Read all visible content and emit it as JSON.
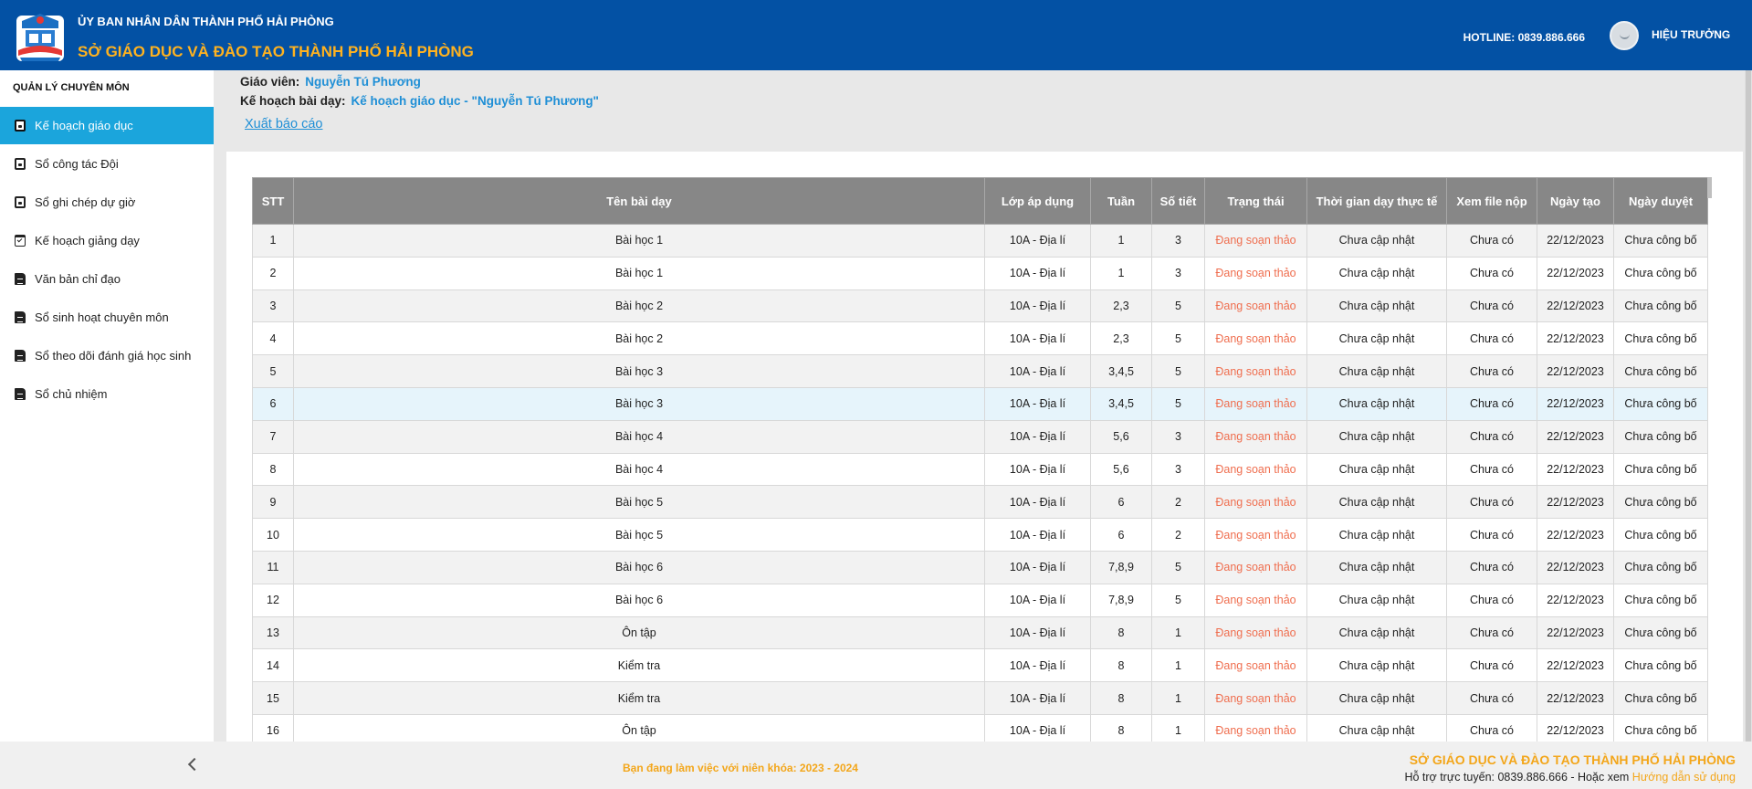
{
  "header": {
    "subtitle": "ỦY BAN NHÂN DÂN THÀNH PHỐ HẢI PHÒNG",
    "title": "SỞ GIÁO DỤC VÀ ĐÀO TẠO THÀNH PHỐ HẢI PHÒNG",
    "hotline": "HOTLINE: 0839.886.666",
    "user_role": "HIỆU TRƯỞNG"
  },
  "sidebar": {
    "heading": "QUẢN LÝ CHUYÊN MÔN",
    "items": [
      {
        "label": "Kế hoạch giáo dục",
        "icon": "book-icon"
      },
      {
        "label": "Sổ công tác Đội",
        "icon": "book-icon"
      },
      {
        "label": "Sổ ghi chép dự giờ",
        "icon": "book-icon"
      },
      {
        "label": "Kế hoạch giảng dạy",
        "icon": "calendar-check-icon"
      },
      {
        "label": "Văn bản chỉ đạo",
        "icon": "file-icon"
      },
      {
        "label": "Sổ sinh hoạt chuyên môn",
        "icon": "file-icon"
      },
      {
        "label": "Sổ theo dõi đánh giá học sinh",
        "icon": "file-icon"
      },
      {
        "label": "Sổ chủ nhiệm",
        "icon": "file-icon"
      }
    ]
  },
  "info": {
    "teacher_label": "Giáo viên:",
    "teacher_value": "Nguyễn Tú Phương",
    "plan_label": "Kế hoạch bài dạy:",
    "plan_value": "Kế hoạch giáo dục - \"Nguyễn Tú Phương\"",
    "export_link": "Xuất báo cáo"
  },
  "table": {
    "headers": [
      "STT",
      "Tên bài dạy",
      "Lớp áp dụng",
      "Tuần",
      "Số tiết",
      "Trạng thái",
      "Thời gian dạy thực tế",
      "Xem file nộp",
      "Ngày tạo",
      "Ngày duyệt"
    ],
    "rows": [
      [
        "1",
        "Bài học 1",
        "10A - Địa lí",
        "1",
        "3",
        "Đang soạn thảo",
        "Chưa cập nhật",
        "Chưa có",
        "22/12/2023",
        "Chưa công bố"
      ],
      [
        "2",
        "Bài học 1",
        "10A - Địa lí",
        "1",
        "3",
        "Đang soạn thảo",
        "Chưa cập nhật",
        "Chưa có",
        "22/12/2023",
        "Chưa công bố"
      ],
      [
        "3",
        "Bài học 2",
        "10A - Địa lí",
        "2,3",
        "5",
        "Đang soạn thảo",
        "Chưa cập nhật",
        "Chưa có",
        "22/12/2023",
        "Chưa công bố"
      ],
      [
        "4",
        "Bài học 2",
        "10A - Địa lí",
        "2,3",
        "5",
        "Đang soạn thảo",
        "Chưa cập nhật",
        "Chưa có",
        "22/12/2023",
        "Chưa công bố"
      ],
      [
        "5",
        "Bài học 3",
        "10A - Địa lí",
        "3,4,5",
        "5",
        "Đang soạn thảo",
        "Chưa cập nhật",
        "Chưa có",
        "22/12/2023",
        "Chưa công bố"
      ],
      [
        "6",
        "Bài học 3",
        "10A - Địa lí",
        "3,4,5",
        "5",
        "Đang soạn thảo",
        "Chưa cập nhật",
        "Chưa có",
        "22/12/2023",
        "Chưa công bố"
      ],
      [
        "7",
        "Bài học 4",
        "10A - Địa lí",
        "5,6",
        "3",
        "Đang soạn thảo",
        "Chưa cập nhật",
        "Chưa có",
        "22/12/2023",
        "Chưa công bố"
      ],
      [
        "8",
        "Bài học 4",
        "10A - Địa lí",
        "5,6",
        "3",
        "Đang soạn thảo",
        "Chưa cập nhật",
        "Chưa có",
        "22/12/2023",
        "Chưa công bố"
      ],
      [
        "9",
        "Bài học 5",
        "10A - Địa lí",
        "6",
        "2",
        "Đang soạn thảo",
        "Chưa cập nhật",
        "Chưa có",
        "22/12/2023",
        "Chưa công bố"
      ],
      [
        "10",
        "Bài học 5",
        "10A - Địa lí",
        "6",
        "2",
        "Đang soạn thảo",
        "Chưa cập nhật",
        "Chưa có",
        "22/12/2023",
        "Chưa công bố"
      ],
      [
        "11",
        "Bài học 6",
        "10A - Địa lí",
        "7,8,9",
        "5",
        "Đang soạn thảo",
        "Chưa cập nhật",
        "Chưa có",
        "22/12/2023",
        "Chưa công bố"
      ],
      [
        "12",
        "Bài học 6",
        "10A - Địa lí",
        "7,8,9",
        "5",
        "Đang soạn thảo",
        "Chưa cập nhật",
        "Chưa có",
        "22/12/2023",
        "Chưa công bố"
      ],
      [
        "13",
        "Ôn tập",
        "10A - Địa lí",
        "8",
        "1",
        "Đang soạn thảo",
        "Chưa cập nhật",
        "Chưa có",
        "22/12/2023",
        "Chưa công bố"
      ],
      [
        "14",
        "Kiểm tra",
        "10A - Địa lí",
        "8",
        "1",
        "Đang soạn thảo",
        "Chưa cập nhật",
        "Chưa có",
        "22/12/2023",
        "Chưa công bố"
      ],
      [
        "15",
        "Kiểm tra",
        "10A - Địa lí",
        "8",
        "1",
        "Đang soạn thảo",
        "Chưa cập nhật",
        "Chưa có",
        "22/12/2023",
        "Chưa công bố"
      ],
      [
        "16",
        "Ôn tập",
        "10A - Địa lí",
        "8",
        "1",
        "Đang soạn thảo",
        "Chưa cập nhật",
        "Chưa có",
        "22/12/2023",
        "Chưa công bố"
      ]
    ]
  },
  "footer": {
    "year_text": "Bạn đang làm việc với niên khóa: 2023 - 2024",
    "org": "SỞ GIÁO DỤC VÀ ĐÀO TẠO THÀNH PHỐ HẢI PHÒNG",
    "support_prefix": "Hỗ trợ trực tuyến: 0839.886.666 - Hoặc xem",
    "guide_link": "Hướng dẫn sử dụng"
  },
  "colors": {
    "header_bg": "#0351a4",
    "accent": "#1ba5dc",
    "highlight": "#f3a61a",
    "status": "#ef6e4f"
  }
}
